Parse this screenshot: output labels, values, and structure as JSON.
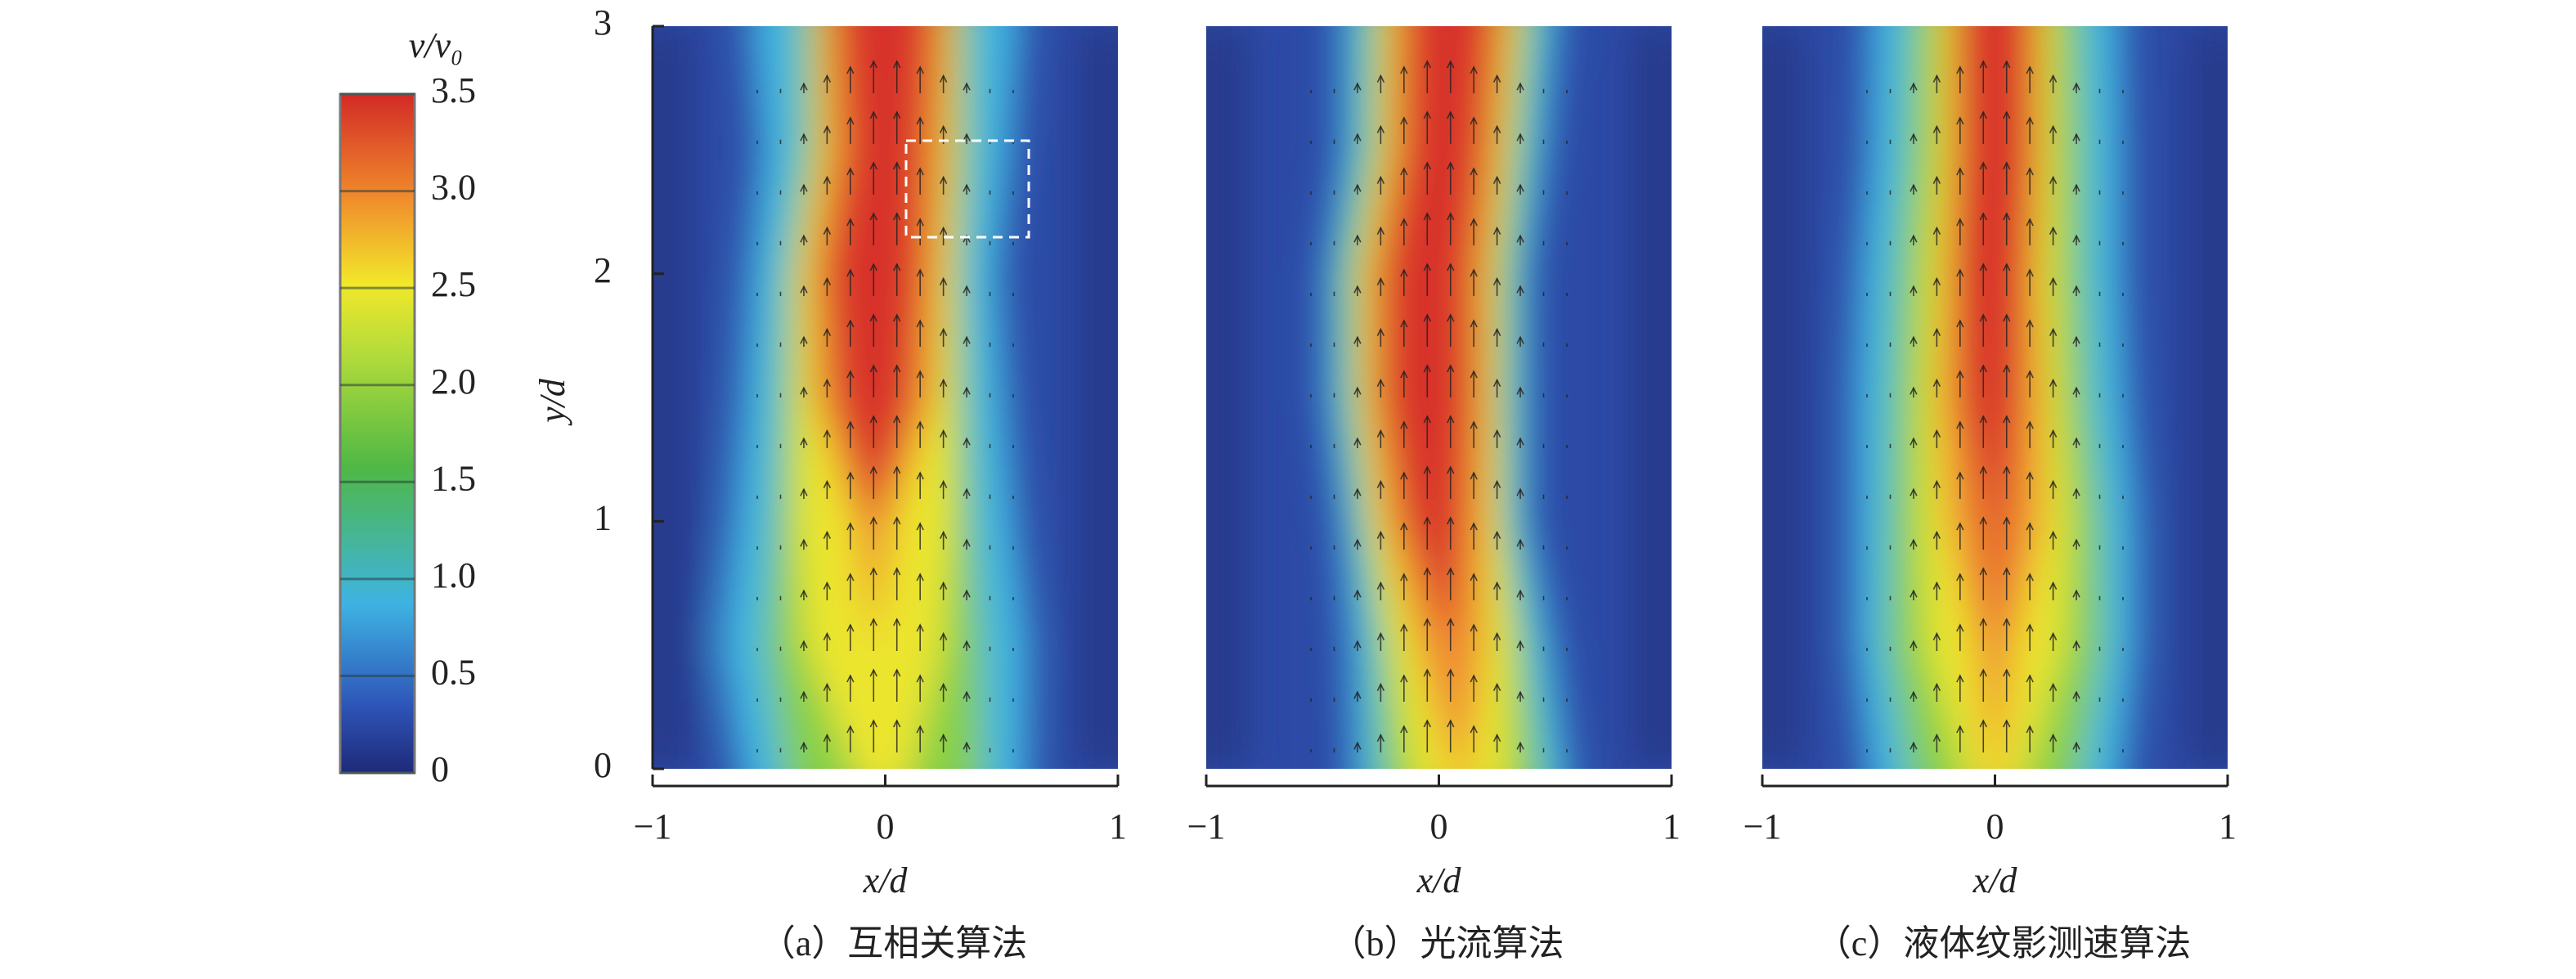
{
  "colorbar": {
    "title": "v/v₀",
    "clim": [
      0,
      3.5
    ],
    "ticks": [
      0,
      0.5,
      {
        "value": 1,
        "label": "1.0"
      },
      1.5,
      {
        "value": 2,
        "label": "2.0"
      },
      2.5,
      {
        "value": 3,
        "label": "3.0"
      },
      3.5
    ]
  },
  "chart_data": [
    {
      "type": "heatmap",
      "caption": "（a）互相关算法",
      "xlabel": "x/d",
      "ylabel": "y/d",
      "xlim": [
        -1,
        1
      ],
      "xticks": [
        {
          "value": -1,
          "label": "−1"
        },
        0,
        1
      ],
      "ylim": [
        0,
        3
      ],
      "yticks": [
        0,
        1,
        2,
        3
      ]
    },
    {
      "type": "heatmap",
      "caption": "（b）光流算法",
      "xlabel": "x/d",
      "xlim": [
        -1,
        1
      ],
      "xticks": [
        {
          "value": -1,
          "label": "−1"
        },
        0,
        1
      ],
      "ylim": [
        0,
        3
      ]
    },
    {
      "type": "heatmap",
      "caption": "（c）液体纹影测速算法",
      "xlabel": "x/d",
      "xlim": [
        -1,
        1
      ],
      "xticks": [
        {
          "value": -1,
          "label": "−1"
        },
        0,
        1
      ],
      "ylim": [
        0,
        3
      ]
    }
  ]
}
